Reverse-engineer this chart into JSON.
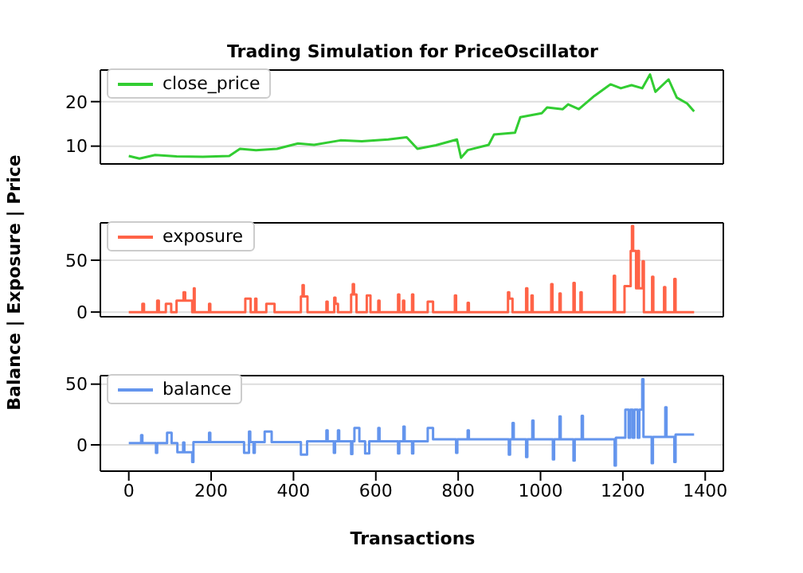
{
  "chart_data": [
    {
      "type": "line",
      "title": "Trading Simulation for PriceOscillator",
      "xlim": [
        -69,
        1444
      ],
      "ylim": [
        6,
        27.1
      ],
      "yticks": [
        10,
        20
      ],
      "grid": "y",
      "legend": "top left",
      "tick_labels": "y",
      "series": [
        {
          "name": "close_price",
          "color": "#32cd32",
          "x": [
            0,
            26,
            64,
            116,
            180,
            244,
            270,
            309,
            360,
            411,
            450,
            514,
            566,
            630,
            675,
            701,
            746,
            797,
            807,
            823,
            874,
            887,
            938,
            951,
            1003,
            1016,
            1054,
            1067,
            1093,
            1131,
            1170,
            1195,
            1221,
            1247,
            1266,
            1279,
            1311,
            1331,
            1356,
            1373
          ],
          "values": [
            7.8,
            7.2,
            8.0,
            7.7,
            7.6,
            7.8,
            9.4,
            9.1,
            9.4,
            10.6,
            10.3,
            11.3,
            11.1,
            11.5,
            12.0,
            9.4,
            10.2,
            11.5,
            7.4,
            9.1,
            10.3,
            12.6,
            13.0,
            16.5,
            17.4,
            18.7,
            18.3,
            19.4,
            18.3,
            21.3,
            23.9,
            23.0,
            23.7,
            23.0,
            26.1,
            22.2,
            25.0,
            20.9,
            19.6,
            17.8
          ]
        }
      ]
    },
    {
      "type": "line",
      "ylabel": "Balance | Exposure | Price",
      "xlim": [
        -69,
        1444
      ],
      "ylim": [
        -4.5,
        86
      ],
      "yticks": [
        0,
        50
      ],
      "grid": "y",
      "legend": "top left",
      "tick_labels": "y",
      "series": [
        {
          "name": "exposure",
          "color": "#ff6347",
          "x": [
            0,
            33,
            33,
            37,
            37,
            69,
            69,
            73,
            73,
            90,
            90,
            103,
            103,
            116,
            116,
            133,
            133,
            137,
            137,
            154,
            154,
            158,
            158,
            160,
            160,
            195,
            195,
            198,
            198,
            283,
            283,
            296,
            296,
            307,
            307,
            310,
            310,
            334,
            334,
            354,
            354,
            418,
            418,
            422,
            422,
            425,
            425,
            434,
            434,
            480,
            480,
            483,
            483,
            499,
            499,
            502,
            502,
            508,
            508,
            540,
            540,
            544,
            544,
            547,
            547,
            553,
            553,
            578,
            578,
            587,
            587,
            606,
            606,
            609,
            609,
            654,
            654,
            657,
            657,
            666,
            666,
            669,
            669,
            688,
            688,
            691,
            691,
            726,
            726,
            739,
            739,
            792,
            792,
            795,
            795,
            823,
            823,
            826,
            826,
            921,
            921,
            924,
            924,
            932,
            932,
            965,
            965,
            968,
            968,
            978,
            978,
            981,
            981,
            1026,
            1026,
            1029,
            1029,
            1046,
            1046,
            1049,
            1049,
            1080,
            1080,
            1083,
            1083,
            1097,
            1097,
            1100,
            1100,
            1178,
            1178,
            1181,
            1181,
            1204,
            1204,
            1219,
            1219,
            1222,
            1222,
            1225,
            1225,
            1232,
            1232,
            1236,
            1236,
            1239,
            1239,
            1248,
            1248,
            1251,
            1251,
            1271,
            1271,
            1274,
            1274,
            1300,
            1300,
            1303,
            1303,
            1325,
            1325,
            1328,
            1328,
            1373
          ],
          "values": [
            0,
            0,
            8,
            8,
            0,
            0,
            11,
            11,
            0,
            0,
            8,
            8,
            0,
            0,
            11,
            11,
            19,
            19,
            11,
            11,
            0,
            0,
            23,
            23,
            0,
            0,
            8,
            8,
            0,
            0,
            13,
            13,
            0,
            0,
            13,
            13,
            0,
            0,
            8,
            8,
            0,
            0,
            15,
            15,
            26,
            26,
            15,
            15,
            0,
            0,
            10,
            10,
            0,
            0,
            14,
            14,
            8,
            8,
            0,
            0,
            17,
            17,
            27,
            27,
            17,
            17,
            0,
            0,
            16,
            16,
            0,
            0,
            11,
            11,
            0,
            0,
            17,
            17,
            0,
            0,
            11,
            11,
            0,
            0,
            17,
            17,
            0,
            0,
            10,
            10,
            0,
            0,
            16,
            16,
            0,
            0,
            9,
            9,
            0,
            0,
            19,
            19,
            13,
            13,
            0,
            0,
            23,
            23,
            0,
            0,
            16,
            16,
            0,
            0,
            27,
            27,
            0,
            0,
            18,
            18,
            0,
            0,
            28,
            28,
            0,
            0,
            19,
            19,
            0,
            0,
            35,
            35,
            0,
            0,
            25,
            25,
            59,
            59,
            83,
            83,
            59,
            59,
            23,
            23,
            59,
            59,
            23,
            23,
            49,
            49,
            0,
            0,
            34,
            34,
            0,
            0,
            24,
            24,
            0,
            0,
            32,
            32,
            0,
            0
          ]
        }
      ]
    },
    {
      "type": "line",
      "xlabel": "Transactions",
      "xlim": [
        -69,
        1444
      ],
      "xticks": [
        0,
        200,
        400,
        600,
        800,
        1000,
        1200,
        1400
      ],
      "ylim": [
        -21.6,
        57
      ],
      "yticks": [
        0,
        50
      ],
      "grid": "y",
      "legend": "top left",
      "series": [
        {
          "name": "balance",
          "color": "#6495ed",
          "x": [
            0,
            30,
            30,
            33,
            33,
            66,
            66,
            69,
            69,
            93,
            93,
            104,
            104,
            118,
            118,
            132,
            132,
            135,
            135,
            154,
            154,
            157,
            157,
            195,
            195,
            198,
            198,
            280,
            280,
            292,
            292,
            295,
            295,
            303,
            303,
            306,
            306,
            330,
            330,
            347,
            347,
            418,
            418,
            433,
            433,
            480,
            480,
            483,
            483,
            498,
            498,
            501,
            501,
            508,
            508,
            511,
            511,
            540,
            540,
            543,
            543,
            548,
            548,
            560,
            560,
            574,
            574,
            584,
            584,
            606,
            606,
            609,
            609,
            654,
            654,
            657,
            657,
            667,
            667,
            670,
            670,
            688,
            688,
            691,
            691,
            726,
            726,
            739,
            739,
            795,
            795,
            798,
            798,
            823,
            823,
            826,
            826,
            923,
            923,
            926,
            926,
            932,
            932,
            935,
            935,
            965,
            965,
            968,
            968,
            980,
            980,
            983,
            983,
            1030,
            1030,
            1033,
            1033,
            1046,
            1046,
            1049,
            1049,
            1080,
            1080,
            1083,
            1083,
            1100,
            1100,
            1103,
            1103,
            1180,
            1180,
            1183,
            1183,
            1206,
            1206,
            1214,
            1214,
            1218,
            1218,
            1224,
            1224,
            1228,
            1228,
            1236,
            1236,
            1240,
            1240,
            1247,
            1247,
            1250,
            1250,
            1270,
            1270,
            1273,
            1273,
            1303,
            1303,
            1306,
            1306,
            1325,
            1325,
            1328,
            1328,
            1373
          ],
          "values": [
            1.5,
            1.5,
            8,
            8,
            1.5,
            1.5,
            -6.5,
            -6.5,
            1.5,
            1.5,
            10,
            10,
            1.5,
            1.5,
            -6,
            -6,
            2,
            2,
            -6,
            -6,
            -14,
            -14,
            2.3,
            2.3,
            10,
            10,
            2.3,
            2.3,
            -6.5,
            -6.5,
            11,
            11,
            2.3,
            2.3,
            -6.5,
            -6.5,
            2.3,
            2.3,
            11,
            11,
            2.3,
            2.3,
            -8,
            -8,
            3,
            3,
            12,
            12,
            3,
            3,
            -6.5,
            -6.5,
            3,
            3,
            12,
            12,
            3,
            3,
            -7.5,
            -7.5,
            3,
            3,
            14,
            14,
            3,
            3,
            -7,
            -7,
            3,
            3,
            14,
            14,
            3,
            3,
            -7,
            -7,
            3,
            3,
            15,
            15,
            3,
            3,
            -7,
            -7,
            3,
            3,
            14,
            14,
            4.6,
            4.6,
            -6.5,
            -6.5,
            4.6,
            4.6,
            12,
            12,
            4.6,
            4.6,
            -8,
            -8,
            4.6,
            4.6,
            18,
            18,
            4.6,
            4.6,
            -10,
            -10,
            4.6,
            4.6,
            20,
            20,
            4.6,
            4.6,
            -12,
            -12,
            4.6,
            4.6,
            23.5,
            23.5,
            4.6,
            4.6,
            -13,
            -13,
            4.6,
            4.6,
            24,
            24,
            4.6,
            4.6,
            -17,
            -17,
            5.9,
            5.9,
            29,
            29,
            5.9,
            5.9,
            29,
            29,
            5.9,
            5.9,
            29,
            29,
            5.9,
            5.9,
            29,
            29,
            54,
            54,
            6.5,
            6.5,
            -15,
            -15,
            6.5,
            6.5,
            31,
            31,
            6.5,
            6.5,
            -14,
            -14,
            8.5,
            8.5
          ]
        }
      ]
    }
  ]
}
